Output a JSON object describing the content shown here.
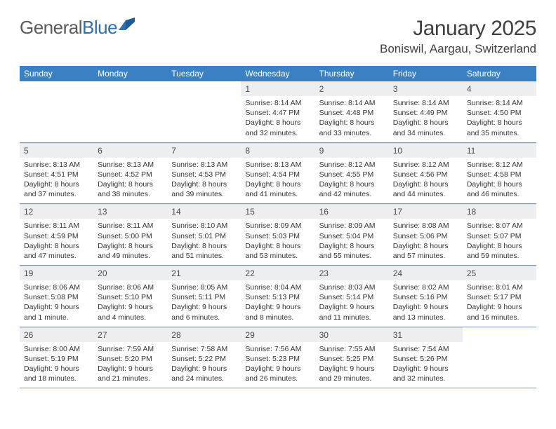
{
  "logo": {
    "part1": "General",
    "part2": "Blue"
  },
  "title": {
    "month_year": "January 2025",
    "location": "Boniswil, Aargau, Switzerland"
  },
  "colors": {
    "header_bg": "#3a81c4",
    "header_text": "#ffffff",
    "daynum_bg": "#eceff2",
    "text": "#333333",
    "rule": "#7d97b6",
    "logo_gray": "#5a5a5a",
    "logo_blue": "#2f6fad"
  },
  "weekdays": [
    "Sunday",
    "Monday",
    "Tuesday",
    "Wednesday",
    "Thursday",
    "Friday",
    "Saturday"
  ],
  "weeks": [
    [
      {
        "empty": true
      },
      {
        "empty": true
      },
      {
        "empty": true
      },
      {
        "num": "1",
        "sunrise": "Sunrise: 8:14 AM",
        "sunset": "Sunset: 4:47 PM",
        "daylight": "Daylight: 8 hours and 32 minutes."
      },
      {
        "num": "2",
        "sunrise": "Sunrise: 8:14 AM",
        "sunset": "Sunset: 4:48 PM",
        "daylight": "Daylight: 8 hours and 33 minutes."
      },
      {
        "num": "3",
        "sunrise": "Sunrise: 8:14 AM",
        "sunset": "Sunset: 4:49 PM",
        "daylight": "Daylight: 8 hours and 34 minutes."
      },
      {
        "num": "4",
        "sunrise": "Sunrise: 8:14 AM",
        "sunset": "Sunset: 4:50 PM",
        "daylight": "Daylight: 8 hours and 35 minutes."
      }
    ],
    [
      {
        "num": "5",
        "sunrise": "Sunrise: 8:13 AM",
        "sunset": "Sunset: 4:51 PM",
        "daylight": "Daylight: 8 hours and 37 minutes."
      },
      {
        "num": "6",
        "sunrise": "Sunrise: 8:13 AM",
        "sunset": "Sunset: 4:52 PM",
        "daylight": "Daylight: 8 hours and 38 minutes."
      },
      {
        "num": "7",
        "sunrise": "Sunrise: 8:13 AM",
        "sunset": "Sunset: 4:53 PM",
        "daylight": "Daylight: 8 hours and 39 minutes."
      },
      {
        "num": "8",
        "sunrise": "Sunrise: 8:13 AM",
        "sunset": "Sunset: 4:54 PM",
        "daylight": "Daylight: 8 hours and 41 minutes."
      },
      {
        "num": "9",
        "sunrise": "Sunrise: 8:12 AM",
        "sunset": "Sunset: 4:55 PM",
        "daylight": "Daylight: 8 hours and 42 minutes."
      },
      {
        "num": "10",
        "sunrise": "Sunrise: 8:12 AM",
        "sunset": "Sunset: 4:56 PM",
        "daylight": "Daylight: 8 hours and 44 minutes."
      },
      {
        "num": "11",
        "sunrise": "Sunrise: 8:12 AM",
        "sunset": "Sunset: 4:58 PM",
        "daylight": "Daylight: 8 hours and 46 minutes."
      }
    ],
    [
      {
        "num": "12",
        "sunrise": "Sunrise: 8:11 AM",
        "sunset": "Sunset: 4:59 PM",
        "daylight": "Daylight: 8 hours and 47 minutes."
      },
      {
        "num": "13",
        "sunrise": "Sunrise: 8:11 AM",
        "sunset": "Sunset: 5:00 PM",
        "daylight": "Daylight: 8 hours and 49 minutes."
      },
      {
        "num": "14",
        "sunrise": "Sunrise: 8:10 AM",
        "sunset": "Sunset: 5:01 PM",
        "daylight": "Daylight: 8 hours and 51 minutes."
      },
      {
        "num": "15",
        "sunrise": "Sunrise: 8:09 AM",
        "sunset": "Sunset: 5:03 PM",
        "daylight": "Daylight: 8 hours and 53 minutes."
      },
      {
        "num": "16",
        "sunrise": "Sunrise: 8:09 AM",
        "sunset": "Sunset: 5:04 PM",
        "daylight": "Daylight: 8 hours and 55 minutes."
      },
      {
        "num": "17",
        "sunrise": "Sunrise: 8:08 AM",
        "sunset": "Sunset: 5:06 PM",
        "daylight": "Daylight: 8 hours and 57 minutes."
      },
      {
        "num": "18",
        "sunrise": "Sunrise: 8:07 AM",
        "sunset": "Sunset: 5:07 PM",
        "daylight": "Daylight: 8 hours and 59 minutes."
      }
    ],
    [
      {
        "num": "19",
        "sunrise": "Sunrise: 8:06 AM",
        "sunset": "Sunset: 5:08 PM",
        "daylight": "Daylight: 9 hours and 1 minute."
      },
      {
        "num": "20",
        "sunrise": "Sunrise: 8:06 AM",
        "sunset": "Sunset: 5:10 PM",
        "daylight": "Daylight: 9 hours and 4 minutes."
      },
      {
        "num": "21",
        "sunrise": "Sunrise: 8:05 AM",
        "sunset": "Sunset: 5:11 PM",
        "daylight": "Daylight: 9 hours and 6 minutes."
      },
      {
        "num": "22",
        "sunrise": "Sunrise: 8:04 AM",
        "sunset": "Sunset: 5:13 PM",
        "daylight": "Daylight: 9 hours and 8 minutes."
      },
      {
        "num": "23",
        "sunrise": "Sunrise: 8:03 AM",
        "sunset": "Sunset: 5:14 PM",
        "daylight": "Daylight: 9 hours and 11 minutes."
      },
      {
        "num": "24",
        "sunrise": "Sunrise: 8:02 AM",
        "sunset": "Sunset: 5:16 PM",
        "daylight": "Daylight: 9 hours and 13 minutes."
      },
      {
        "num": "25",
        "sunrise": "Sunrise: 8:01 AM",
        "sunset": "Sunset: 5:17 PM",
        "daylight": "Daylight: 9 hours and 16 minutes."
      }
    ],
    [
      {
        "num": "26",
        "sunrise": "Sunrise: 8:00 AM",
        "sunset": "Sunset: 5:19 PM",
        "daylight": "Daylight: 9 hours and 18 minutes."
      },
      {
        "num": "27",
        "sunrise": "Sunrise: 7:59 AM",
        "sunset": "Sunset: 5:20 PM",
        "daylight": "Daylight: 9 hours and 21 minutes."
      },
      {
        "num": "28",
        "sunrise": "Sunrise: 7:58 AM",
        "sunset": "Sunset: 5:22 PM",
        "daylight": "Daylight: 9 hours and 24 minutes."
      },
      {
        "num": "29",
        "sunrise": "Sunrise: 7:56 AM",
        "sunset": "Sunset: 5:23 PM",
        "daylight": "Daylight: 9 hours and 26 minutes."
      },
      {
        "num": "30",
        "sunrise": "Sunrise: 7:55 AM",
        "sunset": "Sunset: 5:25 PM",
        "daylight": "Daylight: 9 hours and 29 minutes."
      },
      {
        "num": "31",
        "sunrise": "Sunrise: 7:54 AM",
        "sunset": "Sunset: 5:26 PM",
        "daylight": "Daylight: 9 hours and 32 minutes."
      },
      {
        "empty": true
      }
    ]
  ]
}
